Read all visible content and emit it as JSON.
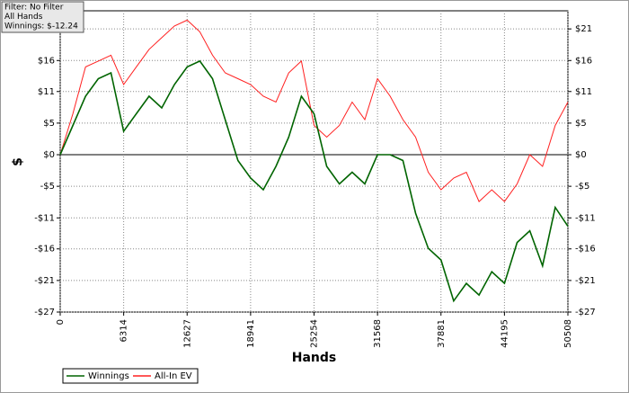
{
  "chart_data": {
    "type": "line",
    "xlabel": "Hands",
    "ylabel": "$",
    "info": [
      "Filter: No Filter",
      "All Hands",
      "Winnings: $-12.24"
    ],
    "x": [
      0,
      1263,
      2525,
      3788,
      5051,
      6314,
      7576,
      8839,
      10102,
      11364,
      12627,
      13890,
      15153,
      16415,
      17678,
      18941,
      20203,
      21466,
      22729,
      23991,
      25254,
      26517,
      27779,
      29042,
      30305,
      31568,
      32830,
      34093,
      35356,
      36618,
      37881,
      39144,
      40406,
      41669,
      42932,
      44195,
      45457,
      46720,
      47983,
      49245,
      50508
    ],
    "series": [
      {
        "name": "Winnings",
        "color": "#006400",
        "values": [
          0,
          5,
          10,
          13,
          14,
          4,
          7,
          10,
          8,
          12,
          15,
          16,
          13,
          6,
          -1,
          -4,
          -6,
          -2,
          3,
          10,
          7,
          -2,
          -5,
          -3,
          -5,
          0,
          0,
          -1,
          -10,
          -16,
          -18,
          -25,
          -22,
          -24,
          -20,
          -22,
          -15,
          -13,
          -19,
          -9,
          -12.24
        ]
      },
      {
        "name": "All-In EV",
        "color": "#ff2020",
        "values": [
          0,
          7,
          15,
          16,
          17,
          12,
          15,
          18,
          20,
          22,
          23,
          21,
          17,
          14,
          13,
          12,
          10,
          9,
          14,
          16,
          5,
          3,
          5,
          9,
          6,
          13,
          10,
          6,
          3,
          -3,
          -6,
          -4,
          -3,
          -8,
          -6,
          -8,
          -5,
          0,
          -2,
          5,
          9
        ]
      }
    ],
    "xlim": [
      0,
      50508
    ],
    "xticks": [
      0,
      6314,
      12627,
      18941,
      25254,
      31568,
      37881,
      44195,
      50508
    ],
    "ylim": [
      -26.9,
      24.6
    ],
    "yticks": [
      {
        "value": -26.9,
        "label": "-$27"
      },
      {
        "value": -21.5,
        "label": "-$21"
      },
      {
        "value": -16.1,
        "label": "-$16"
      },
      {
        "value": -10.8,
        "label": "-$11"
      },
      {
        "value": -5.4,
        "label": "-$5"
      },
      {
        "value": 0,
        "label": "$0"
      },
      {
        "value": 5.4,
        "label": "$5"
      },
      {
        "value": 10.8,
        "label": "$11"
      },
      {
        "value": 16.1,
        "label": "$16"
      },
      {
        "value": 21.5,
        "label": "$21"
      }
    ],
    "grid": true
  }
}
